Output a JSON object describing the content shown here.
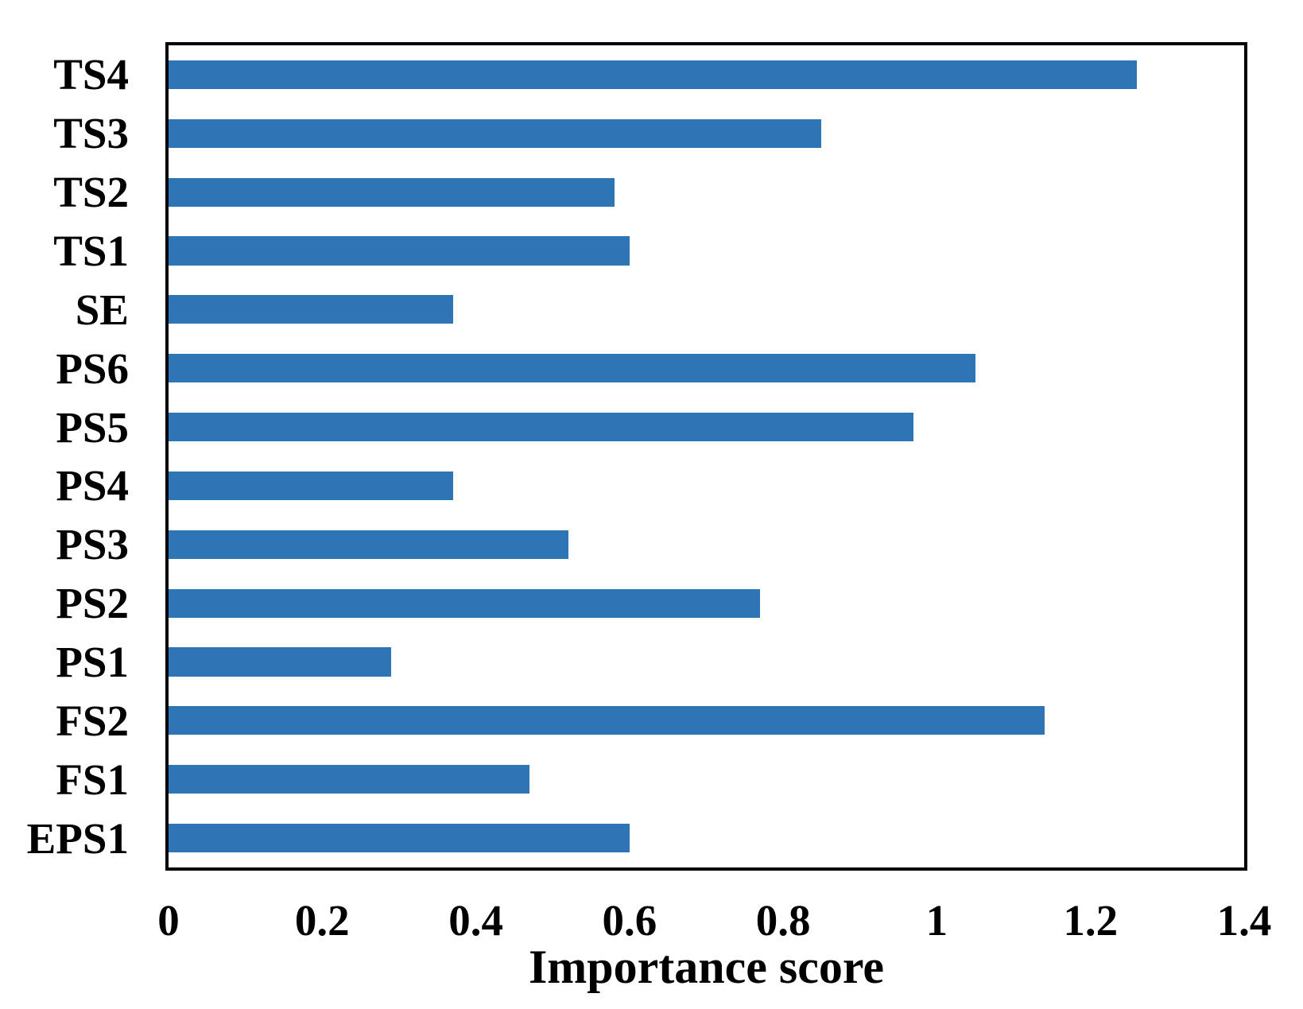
{
  "chart_data": {
    "type": "bar",
    "orientation": "horizontal",
    "title": "",
    "xlabel": "Importance score",
    "ylabel": "",
    "xlim": [
      0,
      1.4
    ],
    "xtick_values": [
      0,
      0.2,
      0.4,
      0.6,
      0.8,
      1,
      1.2,
      1.4
    ],
    "xtick_labels": [
      "0",
      "0.2",
      "0.4",
      "0.6",
      "0.8",
      "1",
      "1.2",
      "1.4"
    ],
    "categories": [
      "TS4",
      "TS3",
      "TS2",
      "TS1",
      "SE",
      "PS6",
      "PS5",
      "PS4",
      "PS3",
      "PS2",
      "PS1",
      "FS2",
      "FS1",
      "EPS1"
    ],
    "values": [
      1.26,
      0.85,
      0.58,
      0.6,
      0.37,
      1.05,
      0.97,
      0.37,
      0.52,
      0.77,
      0.29,
      1.14,
      0.47,
      0.6
    ],
    "bar_color": "#2E75B5",
    "border_color": "#000000",
    "background_color": "#ffffff",
    "grid": "off",
    "legend": "none"
  }
}
